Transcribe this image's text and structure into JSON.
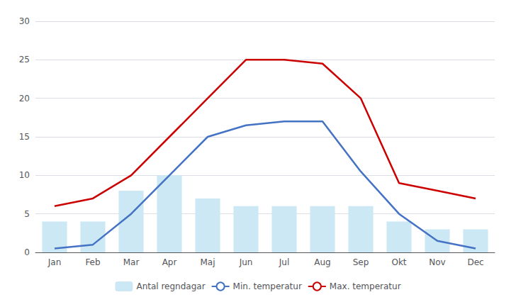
{
  "chart_data": {
    "type": "bar",
    "categories": [
      "Jan",
      "Feb",
      "Mar",
      "Apr",
      "Maj",
      "Jun",
      "Jul",
      "Aug",
      "Sep",
      "Okt",
      "Nov",
      "Dec"
    ],
    "series": [
      {
        "name": "Antal regndagar",
        "type": "bar",
        "color": "#cce8f4",
        "values": [
          4,
          4,
          8,
          10,
          7,
          6,
          6,
          6,
          6,
          4,
          3,
          3
        ]
      },
      {
        "name": "Min. temperatur",
        "type": "line",
        "color": "#4472c4",
        "values": [
          0.5,
          1,
          5,
          10,
          15,
          16.5,
          17,
          17,
          10.5,
          5,
          1.5,
          0.5
        ]
      },
      {
        "name": "Max. temperatur",
        "type": "line",
        "color": "#cc0000",
        "values": [
          6,
          7,
          10,
          15,
          20,
          25,
          25,
          24.5,
          20,
          9,
          8,
          7
        ]
      }
    ],
    "ylim": [
      0,
      30
    ],
    "yticks": [
      0,
      5,
      10,
      15,
      20,
      25,
      30
    ],
    "grid": true,
    "legend": "bottom"
  }
}
